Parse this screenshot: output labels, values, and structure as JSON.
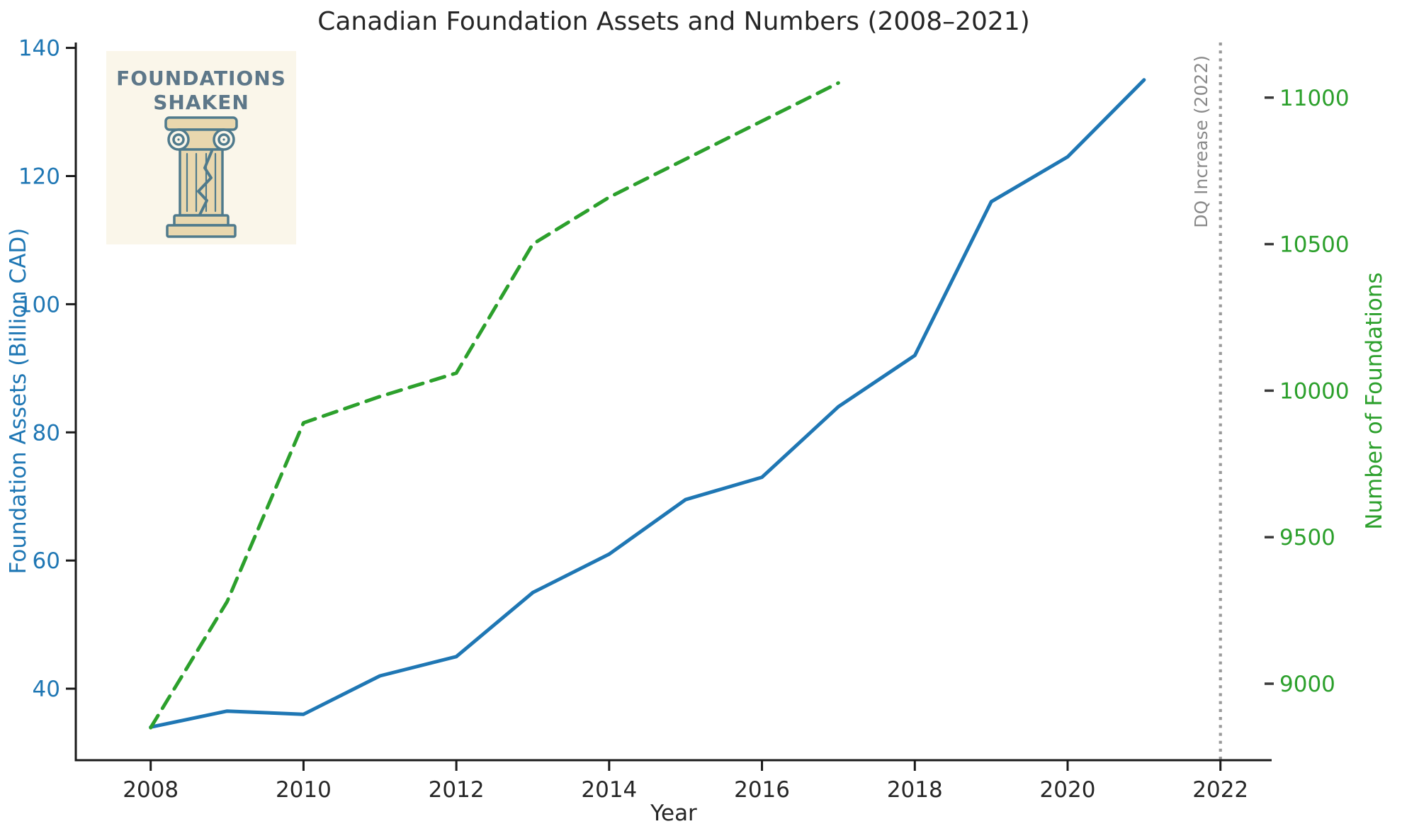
{
  "title": "Canadian Foundation Assets and Numbers (2008–2021)",
  "logo": {
    "line1": "FOUNDATIONS",
    "line2": "SHAKEN",
    "bg_color": "#faf6ea",
    "outline_color": "#4f7a8c",
    "column_fill": "#e9d7ae",
    "text_color": "#5d7789"
  },
  "chart_data": {
    "type": "line",
    "title": "Canadian Foundation Assets and Numbers (2008–2021)",
    "xlabel": "Year",
    "grid": false,
    "legend": null,
    "axes": {
      "x": {
        "ticks": [
          2008,
          2010,
          2012,
          2014,
          2016,
          2018,
          2020,
          2022
        ],
        "range": [
          2007.02,
          2022.67
        ],
        "tick_color": "#262626"
      },
      "left": {
        "label": "Foundation Assets (Billion CAD)",
        "color": "#1f77b4",
        "ticks": [
          40,
          60,
          80,
          100,
          120,
          140
        ],
        "range": [
          28.84,
          140.84
        ]
      },
      "right": {
        "label": "Number of Foundations",
        "color": "#2ca02c",
        "ticks": [
          9000,
          9500,
          10000,
          10500,
          11000
        ],
        "range": [
          8739,
          11188
        ]
      }
    },
    "series": [
      {
        "name": "Foundation Assets (Billion CAD)",
        "axis": "left",
        "style": "solid",
        "color": "#1f77b4",
        "x": [
          2008,
          2009,
          2010,
          2011,
          2012,
          2013,
          2014,
          2015,
          2016,
          2017,
          2018,
          2019,
          2020,
          2021
        ],
        "values": [
          34,
          36.5,
          36,
          42,
          45,
          55,
          61,
          69.5,
          73,
          84,
          92,
          116,
          123,
          135
        ]
      },
      {
        "name": "Number of Foundations",
        "axis": "right",
        "style": "dashed",
        "color": "#2ca02c",
        "x": [
          2008,
          2009,
          2010,
          2011,
          2012,
          2013,
          2014,
          2015,
          2016,
          2017
        ],
        "values": [
          8850,
          9280,
          9890,
          9980,
          10060,
          10500,
          10660,
          10790,
          10920,
          11050
        ]
      }
    ],
    "annotation": {
      "label": "DQ Increase (2022)",
      "x": 2022,
      "style": "dotted",
      "line_color": "#999999",
      "label_color": "#8a8a8a"
    }
  }
}
